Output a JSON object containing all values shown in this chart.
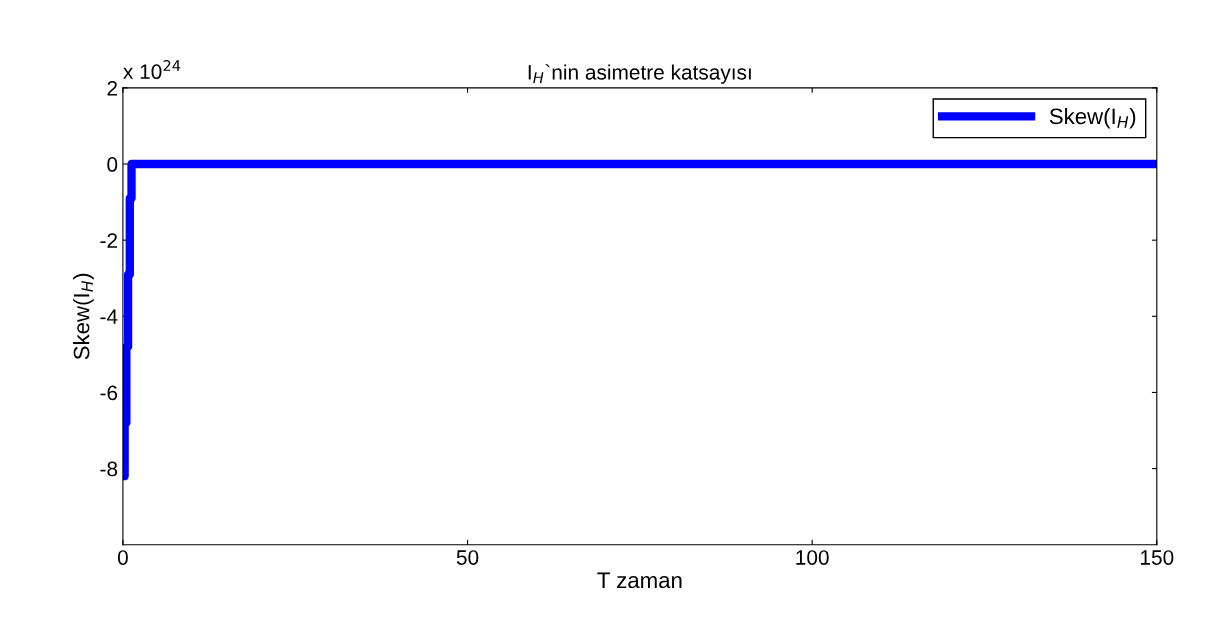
{
  "chart_data": {
    "type": "step",
    "title": "I$_{H}$`nin asimetre katsayısı",
    "xlabel": "T zaman",
    "ylabel": "Skew(I$_{H}$)",
    "annotations": [
      "x 10$^{24}$"
    ],
    "series": [
      {
        "name": "Skew(I$_{H}$)",
        "color": "#0000ff",
        "x": [
          0,
          0.25,
          0.5,
          0.75,
          1.0,
          1.25,
          150
        ],
        "values": [
          -8.2,
          -6.8,
          -4.8,
          -2.9,
          -0.9,
          0,
          0
        ]
      }
    ],
    "xlim": [
      0,
      150
    ],
    "xticks": [
      0,
      50,
      100,
      150
    ],
    "ylim": [
      -10,
      2
    ],
    "yticks": [
      -8,
      -6,
      -4,
      -2,
      0,
      2
    ],
    "grid": false,
    "legend": "top right",
    "line_style": "solid",
    "marker": "none"
  }
}
